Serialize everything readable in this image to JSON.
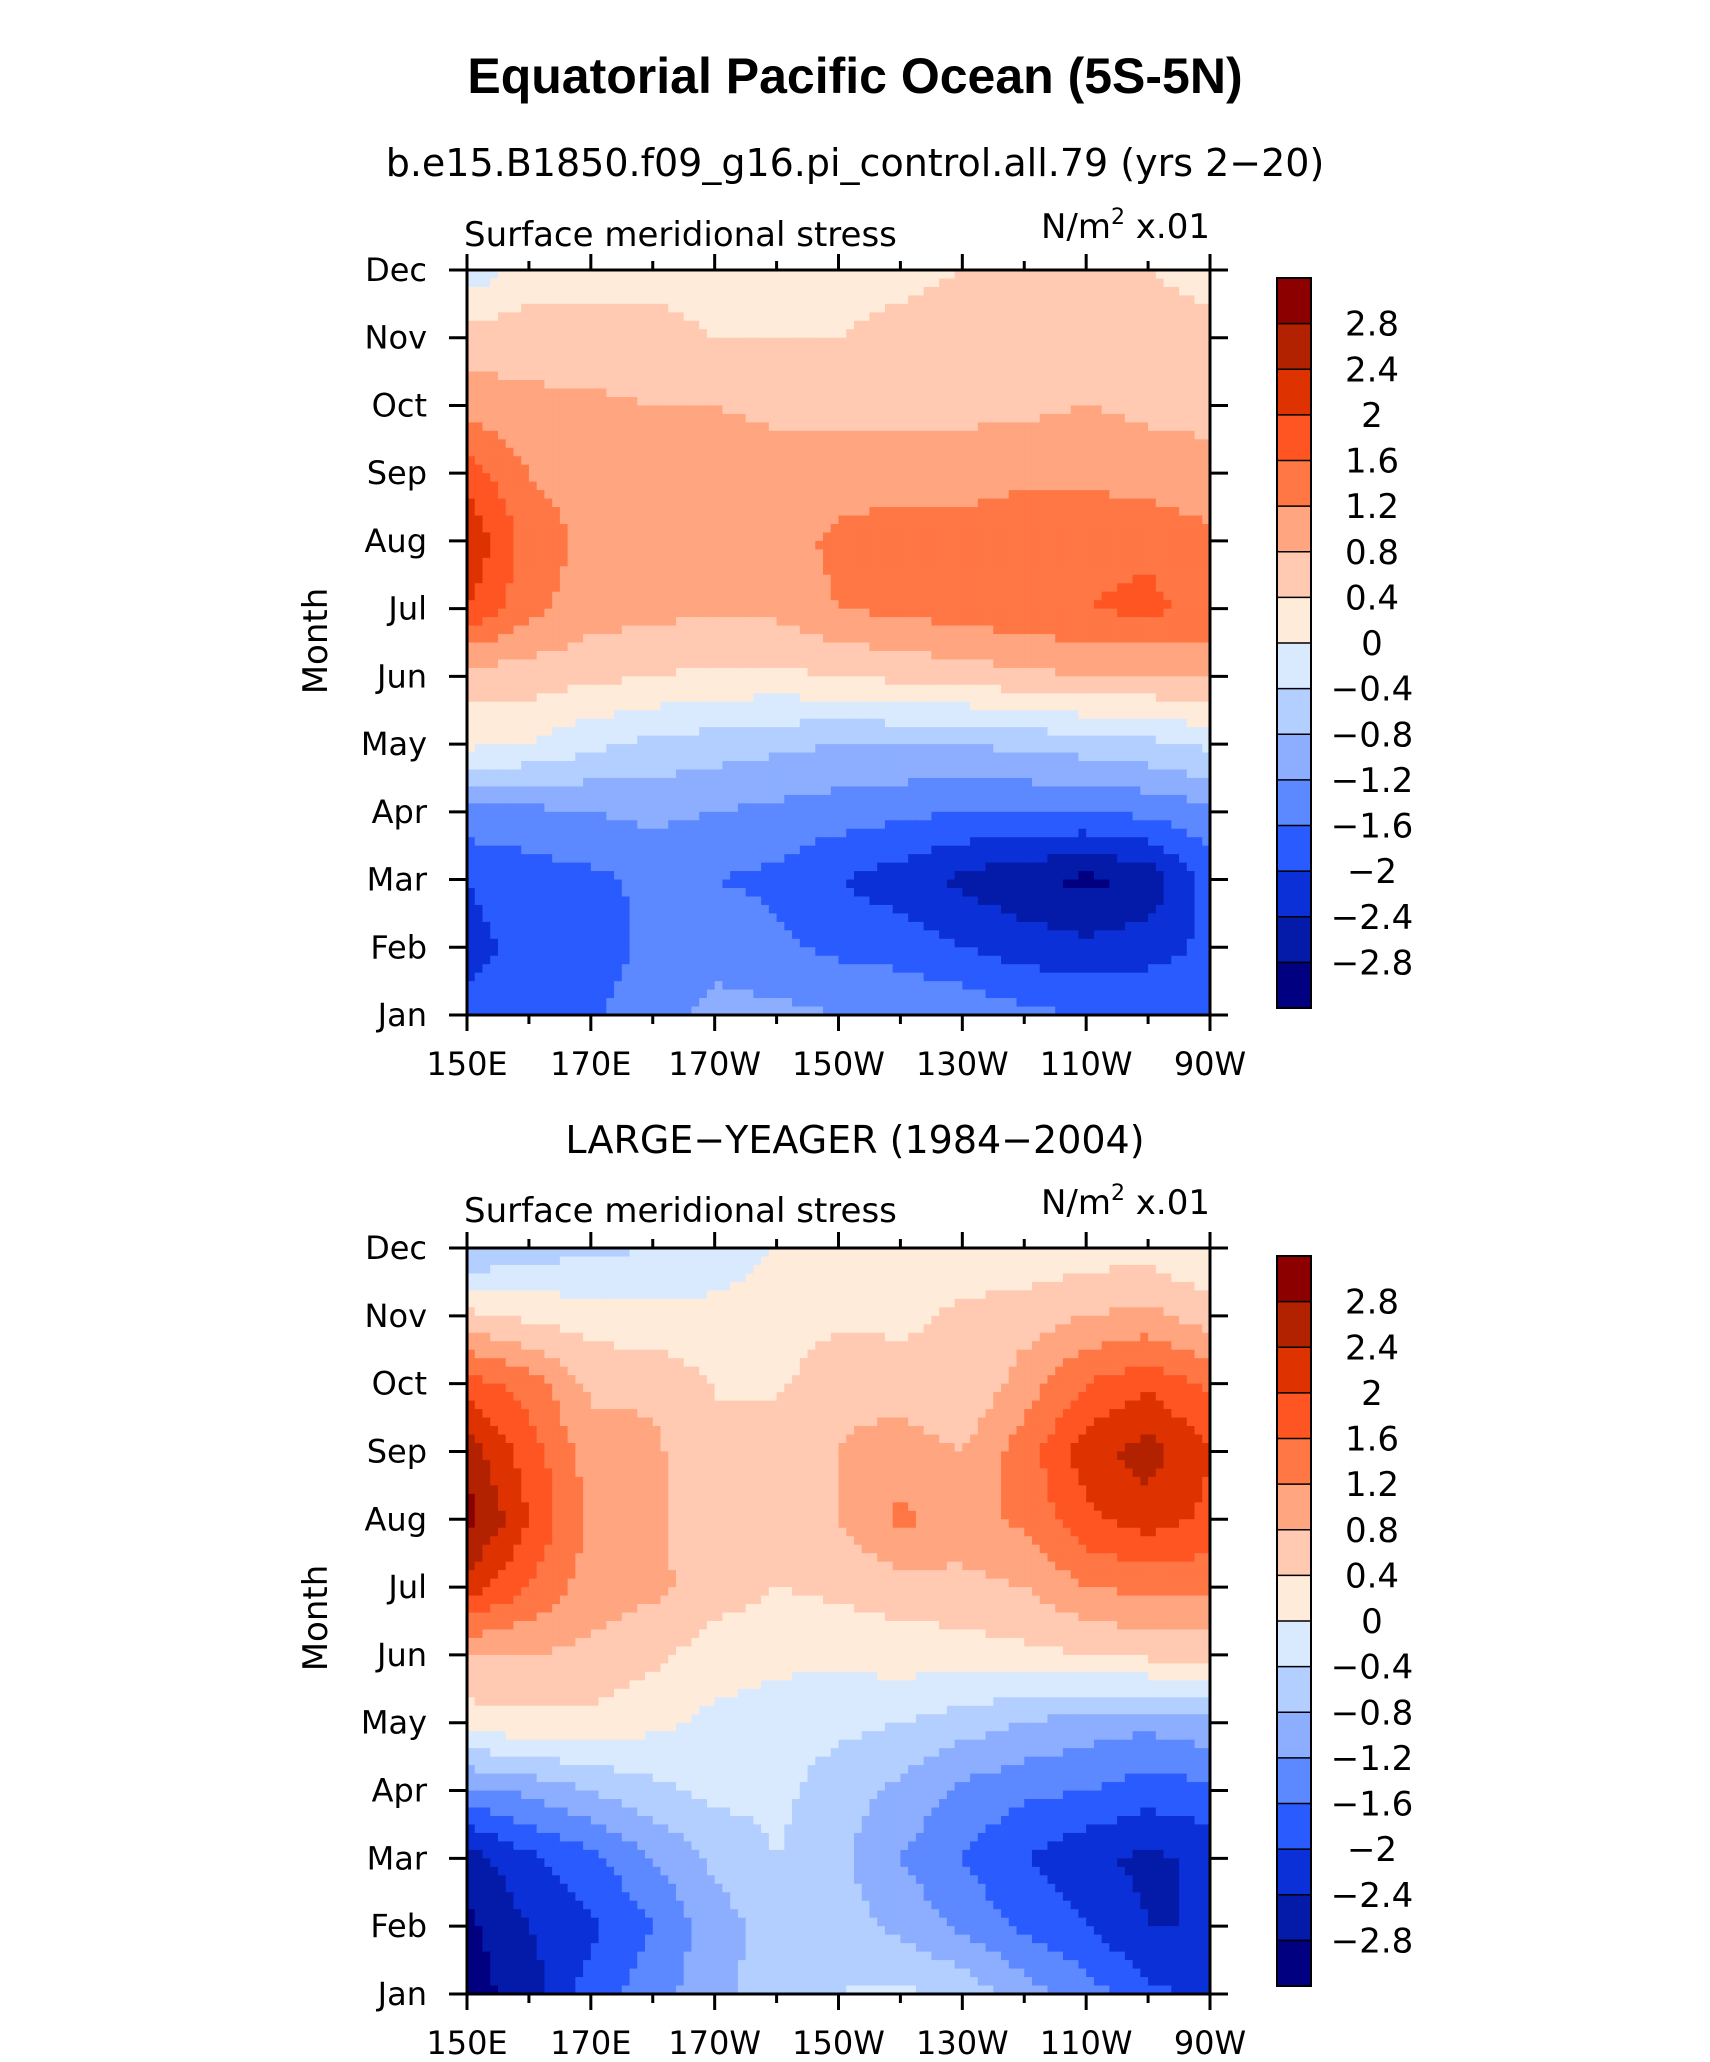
{
  "figure": {
    "title": "Equatorial Pacific Ocean (5S-5N)"
  },
  "chart_data": [
    {
      "type": "heatmap",
      "title": "b.e15.B1850.f09_g16.pi_control.all.79 (yrs 2−20)",
      "left_label": "Surface meridional stress",
      "units_label": "N/m",
      "units_sup": "2",
      "units_suffix": " x.01",
      "ylabel": "Month",
      "x_tick_labels": [
        "150E",
        "170E",
        "170W",
        "150W",
        "130W",
        "110W",
        "90W"
      ],
      "y_tick_labels": [
        "Jan",
        "Feb",
        "Mar",
        "Apr",
        "May",
        "Jun",
        "Jul",
        "Aug",
        "Sep",
        "Oct",
        "Nov",
        "Dec"
      ],
      "xlim": [
        150,
        270
      ],
      "levels": [
        2.8,
        2.4,
        2,
        1.6,
        1.2,
        0.8,
        0.4,
        0,
        -0.4,
        -0.8,
        -1.2,
        -1.6,
        -2,
        -2.4,
        -2.8
      ],
      "level_labels": [
        "2.8",
        "2.4",
        "2",
        "1.6",
        "1.2",
        "0.8",
        "0.4",
        "0",
        "−0.4",
        "−0.8",
        "−1.2",
        "−1.6",
        "−2",
        "−2.4",
        "−2.8"
      ],
      "palette": [
        "#8c0000",
        "#b22200",
        "#de3300",
        "#ff5522",
        "#ff7744",
        "#ffa57f",
        "#ffcab1",
        "#ffebda",
        "#d9eaff",
        "#b2cfff",
        "#8daeff",
        "#5c89ff",
        "#2a5bff",
        "#0b30d8",
        "#041aa8",
        "#000080"
      ],
      "months": [
        "Jan",
        "Feb",
        "Mar",
        "Apr",
        "May",
        "Jun",
        "Jul",
        "Aug",
        "Sep",
        "Oct",
        "Nov",
        "Dec"
      ],
      "longitudes": [
        150,
        160,
        170,
        180,
        190,
        200,
        210,
        220,
        230,
        240,
        250,
        260,
        270
      ],
      "values": [
        [
          -1.9,
          -1.8,
          -1.7,
          -1.3,
          -1.1,
          -1.1,
          -1.2,
          -1.2,
          -1.3,
          -1.5,
          -1.6,
          -1.6,
          -1.6
        ],
        [
          -2.1,
          -1.9,
          -1.8,
          -1.5,
          -1.3,
          -1.5,
          -1.7,
          -1.8,
          -2.0,
          -2.2,
          -2.3,
          -2.2,
          -1.9
        ],
        [
          -2.0,
          -1.8,
          -1.7,
          -1.5,
          -1.6,
          -1.7,
          -2.0,
          -2.2,
          -2.5,
          -2.7,
          -2.9,
          -2.7,
          -1.8
        ],
        [
          -1.3,
          -1.3,
          -1.2,
          -1.1,
          -1.2,
          -1.3,
          -1.4,
          -1.5,
          -1.6,
          -1.6,
          -1.6,
          -1.5,
          -1.3
        ],
        [
          0.1,
          0.0,
          -0.3,
          -0.5,
          -0.6,
          -0.7,
          -0.8,
          -0.8,
          -0.8,
          -0.7,
          -0.6,
          -0.5,
          -0.3
        ],
        [
          0.6,
          0.6,
          0.5,
          0.4,
          0.3,
          0.3,
          0.4,
          0.5,
          0.6,
          0.7,
          0.8,
          0.8,
          0.8
        ],
        [
          2.0,
          1.3,
          1.0,
          0.9,
          0.9,
          0.9,
          1.2,
          1.3,
          1.4,
          1.5,
          1.6,
          1.7,
          1.5
        ],
        [
          2.4,
          1.4,
          1.1,
          1.0,
          1.0,
          1.0,
          1.3,
          1.4,
          1.4,
          1.5,
          1.5,
          1.5,
          1.3
        ],
        [
          1.8,
          1.2,
          1.0,
          1.0,
          1.0,
          1.0,
          1.0,
          1.0,
          1.0,
          1.1,
          1.1,
          1.0,
          0.9
        ],
        [
          1.0,
          0.9,
          0.9,
          0.8,
          0.8,
          0.7,
          0.7,
          0.7,
          0.7,
          0.7,
          0.8,
          0.7,
          0.7
        ],
        [
          0.6,
          0.6,
          0.5,
          0.5,
          0.4,
          0.4,
          0.4,
          0.5,
          0.6,
          0.6,
          0.6,
          0.5,
          0.5
        ],
        [
          -0.3,
          0.2,
          0.3,
          0.3,
          0.3,
          0.3,
          0.3,
          0.3,
          0.4,
          0.5,
          0.5,
          0.4,
          0.3
        ]
      ]
    },
    {
      "type": "heatmap",
      "title": "LARGE−YEAGER (1984−2004)",
      "left_label": "Surface meridional stress",
      "units_label": "N/m",
      "units_sup": "2",
      "units_suffix": " x.01",
      "ylabel": "Month",
      "x_tick_labels": [
        "150E",
        "170E",
        "170W",
        "150W",
        "130W",
        "110W",
        "90W"
      ],
      "y_tick_labels": [
        "Jan",
        "Feb",
        "Mar",
        "Apr",
        "May",
        "Jun",
        "Jul",
        "Aug",
        "Sep",
        "Oct",
        "Nov",
        "Dec"
      ],
      "xlim": [
        150,
        270
      ],
      "levels": [
        2.8,
        2.4,
        2,
        1.6,
        1.2,
        0.8,
        0.4,
        0,
        -0.4,
        -0.8,
        -1.2,
        -1.6,
        -2,
        -2.4,
        -2.8
      ],
      "level_labels": [
        "2.8",
        "2.4",
        "2",
        "1.6",
        "1.2",
        "0.8",
        "0.4",
        "0",
        "−0.4",
        "−0.8",
        "−1.2",
        "−1.6",
        "−2",
        "−2.4",
        "−2.8"
      ],
      "palette": [
        "#8c0000",
        "#b22200",
        "#de3300",
        "#ff5522",
        "#ff7744",
        "#ffa57f",
        "#ffcab1",
        "#ffebda",
        "#d9eaff",
        "#b2cfff",
        "#8daeff",
        "#5c89ff",
        "#2a5bff",
        "#0b30d8",
        "#041aa8",
        "#000080"
      ],
      "months": [
        "Jan",
        "Feb",
        "Mar",
        "Apr",
        "May",
        "Jun",
        "Jul",
        "Aug",
        "Sep",
        "Oct",
        "Nov",
        "Dec"
      ],
      "longitudes": [
        150,
        160,
        170,
        180,
        190,
        200,
        210,
        220,
        230,
        240,
        250,
        260,
        270
      ],
      "values": [
        [
          -3.0,
          -2.6,
          -1.8,
          -1.4,
          -0.9,
          -0.6,
          -0.4,
          -0.3,
          -0.5,
          -1.0,
          -1.4,
          -1.9,
          -2.1
        ],
        [
          -2.9,
          -2.4,
          -2.1,
          -1.6,
          -1.0,
          -0.6,
          -0.6,
          -0.9,
          -1.3,
          -1.7,
          -2.0,
          -2.4,
          -2.4
        ],
        [
          -2.6,
          -2.1,
          -1.7,
          -1.2,
          -0.7,
          -0.4,
          -0.7,
          -1.2,
          -1.6,
          -2.0,
          -2.3,
          -2.5,
          -2.3
        ],
        [
          -1.3,
          -1.1,
          -0.8,
          -0.5,
          -0.3,
          -0.3,
          -0.6,
          -0.9,
          -1.3,
          -1.5,
          -1.6,
          -1.8,
          -1.7
        ],
        [
          0.2,
          0.3,
          0.3,
          0.1,
          -0.1,
          -0.2,
          -0.3,
          -0.4,
          -0.6,
          -0.8,
          -1.0,
          -1.1,
          -0.9
        ],
        [
          0.8,
          0.8,
          0.7,
          0.5,
          0.2,
          0.1,
          0.1,
          0.2,
          0.2,
          0.3,
          0.4,
          0.5,
          0.5
        ],
        [
          2.2,
          1.6,
          1.0,
          0.9,
          0.6,
          0.4,
          0.5,
          0.6,
          0.7,
          0.8,
          1.2,
          1.3,
          1.3
        ],
        [
          3.0,
          2.0,
          1.1,
          0.9,
          0.5,
          0.4,
          0.8,
          1.3,
          1.0,
          1.3,
          1.9,
          2.2,
          1.9
        ],
        [
          2.6,
          1.8,
          1.0,
          0.9,
          0.4,
          0.8,
          0.8,
          1.0,
          0.8,
          1.4,
          2.2,
          2.6,
          2.0
        ],
        [
          1.8,
          1.4,
          0.7,
          0.7,
          0.4,
          0.3,
          0.7,
          0.6,
          0.4,
          1.0,
          1.6,
          1.9,
          1.5
        ],
        [
          0.5,
          0.3,
          0.2,
          0.1,
          0.1,
          0.2,
          0.3,
          0.3,
          0.5,
          0.6,
          0.8,
          0.9,
          0.6
        ],
        [
          -0.9,
          -0.6,
          -0.5,
          -0.4,
          -0.2,
          0.0,
          0.3,
          0.2,
          0.1,
          0.1,
          0.2,
          0.2,
          0.0
        ]
      ]
    }
  ]
}
